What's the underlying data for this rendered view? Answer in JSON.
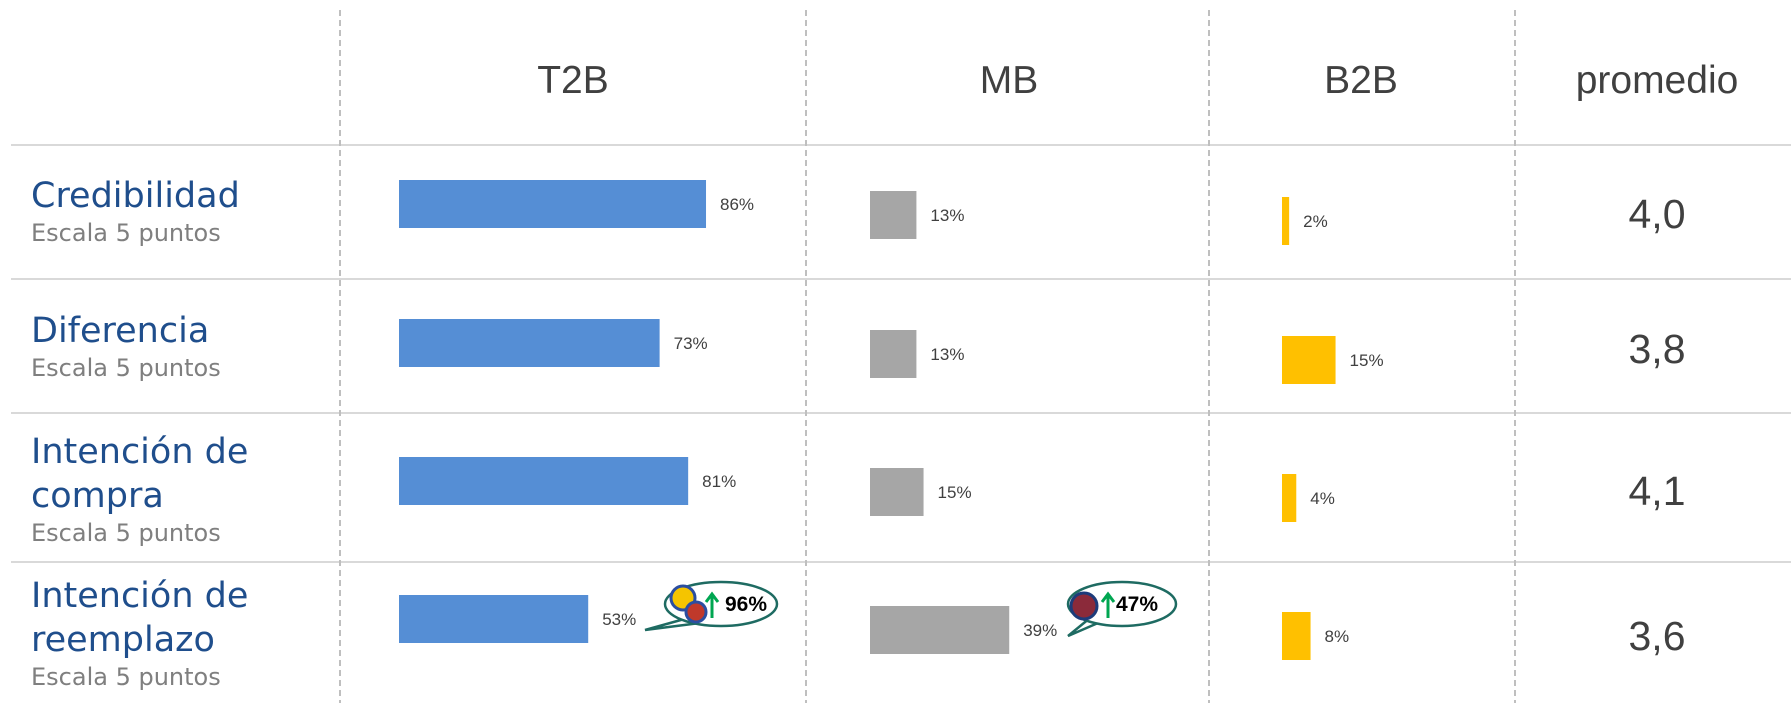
{
  "table": {
    "columns": [
      "T2B",
      "MB",
      "B2B",
      "promedio"
    ],
    "colors": [
      "#558ed5",
      "#a6a6a6",
      "#ffc000"
    ],
    "rows": [
      {
        "label": "Credibilidad",
        "sublabel": "Escala 5 puntos",
        "values": [
          86,
          13,
          2
        ],
        "value_labels": [
          "86%",
          "13%",
          "2%"
        ],
        "promedio": "4,0"
      },
      {
        "label": "Diferencia",
        "sublabel": "Escala 5 puntos",
        "values": [
          73,
          13,
          15
        ],
        "value_labels": [
          "73%",
          "13%",
          "15%"
        ],
        "promedio": "3,8"
      },
      {
        "label": "Intención de compra",
        "sublabel": "Escala 5 puntos",
        "values": [
          81,
          15,
          4
        ],
        "value_labels": [
          "81%",
          "15%",
          "4%"
        ],
        "promedio": "4,1"
      },
      {
        "label": "Intención de reemplazo",
        "sublabel": "Escala 5 puntos",
        "values": [
          53,
          39,
          8
        ],
        "value_labels": [
          "53%",
          "39%",
          "8%"
        ],
        "promedio": "3,6"
      }
    ],
    "callouts": [
      {
        "text": "96%"
      },
      {
        "text": "47%"
      }
    ]
  }
}
